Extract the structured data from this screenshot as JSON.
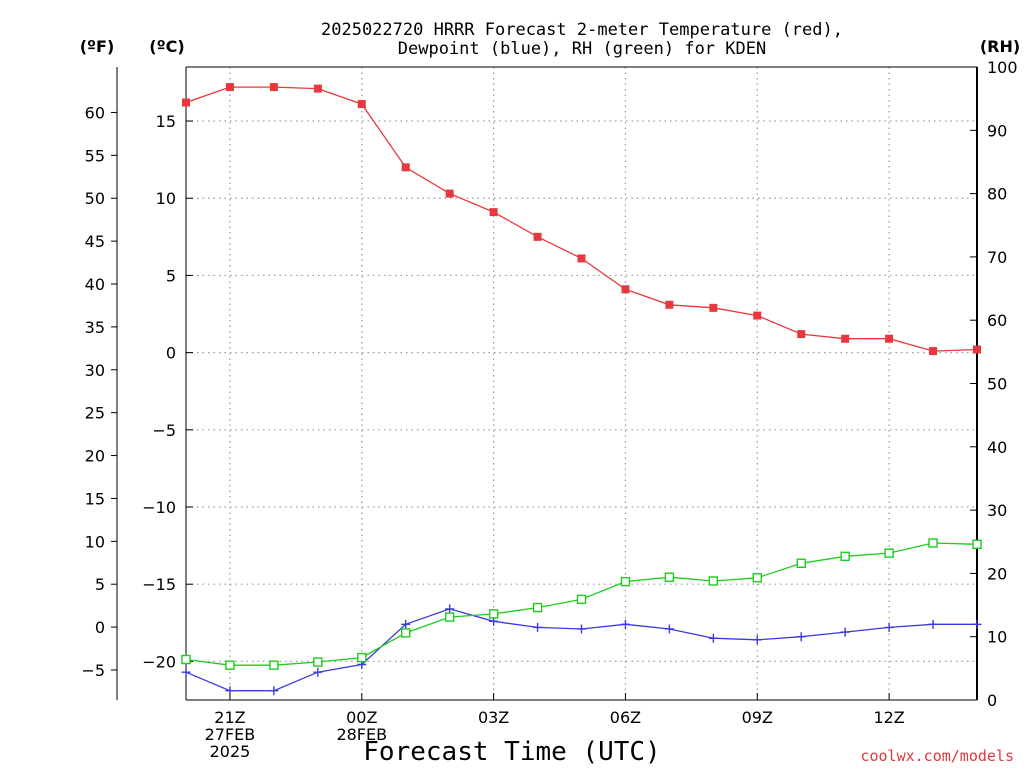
{
  "chart_data": {
    "type": "line",
    "title_lines": [
      "2025022720 HRRR Forecast 2-meter Temperature (red),",
      "Dewpoint (blue), RH (green) for KDEN"
    ],
    "xlabel": "Forecast Time (UTC)",
    "credit": "coolwx.com/models",
    "units": {
      "fahrenheit": "(ºF)",
      "celsius": "(ºC)",
      "rh": "(RH)"
    },
    "x_hours": [
      20,
      21,
      22,
      23,
      24,
      25,
      26,
      27,
      28,
      29,
      30,
      31,
      32,
      33,
      34,
      35,
      36,
      37,
      38
    ],
    "xlim": [
      20,
      38
    ],
    "x_ticks": [
      {
        "hour": 21,
        "lines": [
          "21Z",
          "27FEB",
          "2025"
        ]
      },
      {
        "hour": 24,
        "lines": [
          "00Z",
          "28FEB"
        ]
      },
      {
        "hour": 27,
        "lines": [
          "03Z"
        ]
      },
      {
        "hour": 30,
        "lines": [
          "06Z"
        ]
      },
      {
        "hour": 33,
        "lines": [
          "09Z"
        ]
      },
      {
        "hour": 36,
        "lines": [
          "12Z"
        ]
      }
    ],
    "ylim_celsius": [
      -22.5,
      18.5
    ],
    "ylim_rh": [
      0,
      100
    ],
    "y_ticks_celsius": [
      "15",
      "10",
      "5",
      "0",
      "−5",
      "−10",
      "−15",
      "−20"
    ],
    "y_ticks_fahrenheit": [
      "60",
      "55",
      "50",
      "45",
      "40",
      "35",
      "30",
      "25",
      "20",
      "15",
      "10",
      "5",
      "0",
      "−5"
    ],
    "y_ticks_rh": [
      "100",
      "90",
      "80",
      "70",
      "60",
      "50",
      "40",
      "30",
      "20",
      "10",
      "0"
    ],
    "grid": true,
    "series": [
      {
        "label": "Temperature (red)",
        "axis": "celsius",
        "marker": "filled-square",
        "color": "#e8383d",
        "values": [
          16.2,
          17.2,
          17.2,
          17.1,
          16.1,
          12.0,
          10.3,
          9.1,
          7.5,
          6.1,
          4.1,
          3.1,
          2.9,
          2.4,
          1.2,
          0.9,
          0.9,
          0.1,
          0.2
        ]
      },
      {
        "label": "Dewpoint (blue)",
        "axis": "celsius",
        "marker": "plus",
        "color": "#3a3ae0",
        "values": [
          -20.7,
          -21.9,
          -21.9,
          -20.7,
          -20.2,
          -17.6,
          -16.6,
          -17.4,
          -17.8,
          -17.9,
          -17.6,
          -17.9,
          -18.5,
          -18.6,
          -18.4,
          -18.1,
          -17.8,
          -17.6,
          -17.6
        ]
      },
      {
        "label": "RH (green)",
        "axis": "rh",
        "marker": "open-square",
        "color": "#1ecb1e",
        "values": [
          6.4,
          5.5,
          5.5,
          6.0,
          6.7,
          10.6,
          13.1,
          13.6,
          14.6,
          15.9,
          18.7,
          19.4,
          18.8,
          19.3,
          21.6,
          22.7,
          23.2,
          24.8,
          24.6
        ]
      }
    ]
  }
}
